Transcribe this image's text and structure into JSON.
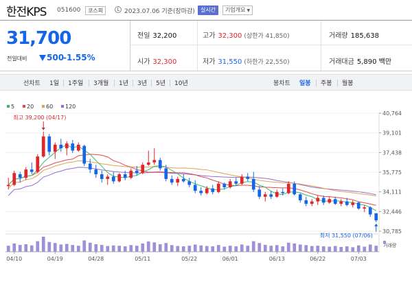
{
  "header": {
    "name": "한전KPS",
    "code": "051600",
    "market": "코스피",
    "date": "2023.07.06 기준(장마감)",
    "realtime_label": "실시간",
    "corp_label": "기업개요"
  },
  "price": {
    "current": "31,700",
    "change_label": "전일대비",
    "change": "500",
    "change_pct": "-1.55%",
    "direction": "down"
  },
  "stats": {
    "prev_close": {
      "label": "전일",
      "value": "32,200"
    },
    "high": {
      "label": "고가",
      "value": "32,300",
      "sub": "(상한가 41,850)"
    },
    "volume": {
      "label": "거래량",
      "value": "185,638"
    },
    "open": {
      "label": "시가",
      "value": "32,300"
    },
    "low": {
      "label": "저가",
      "value": "31,550",
      "sub": "(하한가 22,550)"
    },
    "amount": {
      "label": "거래대금",
      "value": "5,890 백만"
    }
  },
  "toolbar": {
    "line_chart_label": "선차트",
    "periods": [
      "1일",
      "1주일",
      "3개월",
      "1년",
      "3년",
      "5년",
      "10년"
    ],
    "candle_label": "봉차트",
    "candle_types": [
      "일봉",
      "주봉",
      "월봉"
    ],
    "candle_selected": "일봉"
  },
  "colors": {
    "up": "#e0252c",
    "down": "#1565e8",
    "ma5": "#3dbb6b",
    "ma20": "#e04a4a",
    "ma60": "#e0a050",
    "ma120": "#9a6ad0",
    "volume": "#9e8fd8",
    "accent": "#5b6fcf"
  },
  "icons": {
    "clock": "clock-icon",
    "caret": "chevron-down-icon"
  },
  "chart_data": {
    "type": "candlestick",
    "legend": [
      {
        "name": "5",
        "color": "#3dbb6b"
      },
      {
        "name": "20",
        "color": "#e04a4a"
      },
      {
        "name": "60",
        "color": "#e0a050"
      },
      {
        "name": "120",
        "color": "#9a6ad0"
      }
    ],
    "y_ticks": [
      30785,
      32446,
      34111,
      35775,
      37438,
      39101,
      40764
    ],
    "ylim": [
      30785,
      40764
    ],
    "x_ticks": [
      "04/10",
      "04/19",
      "04/28",
      "05/11",
      "05/22",
      "06/01",
      "06/13",
      "06/22",
      "07/03"
    ],
    "x_tick_index": [
      1,
      8,
      15,
      23,
      31,
      38,
      46,
      53,
      60
    ],
    "high_annotation": "최고 39,200 (04/17)",
    "high_annotation_index": 6,
    "low_annotation": "최저 31,550 (07/06)",
    "low_annotation_index": 63,
    "volume_label": "거래량",
    "candles": [
      {
        "o": 34600,
        "h": 35300,
        "l": 34300,
        "c": 34700,
        "v": 40
      },
      {
        "o": 34700,
        "h": 35900,
        "l": 34600,
        "c": 35700,
        "v": 55
      },
      {
        "o": 35600,
        "h": 35800,
        "l": 34900,
        "c": 35300,
        "v": 45
      },
      {
        "o": 35300,
        "h": 36200,
        "l": 35100,
        "c": 36000,
        "v": 50
      },
      {
        "o": 36000,
        "h": 36600,
        "l": 35600,
        "c": 35800,
        "v": 42
      },
      {
        "o": 35800,
        "h": 37300,
        "l": 35700,
        "c": 37100,
        "v": 70
      },
      {
        "o": 37100,
        "h": 39200,
        "l": 37000,
        "c": 38800,
        "v": 100
      },
      {
        "o": 38800,
        "h": 39000,
        "l": 37200,
        "c": 37500,
        "v": 65
      },
      {
        "o": 37500,
        "h": 38300,
        "l": 36900,
        "c": 38100,
        "v": 58
      },
      {
        "o": 38100,
        "h": 38600,
        "l": 37500,
        "c": 37800,
        "v": 48
      },
      {
        "o": 37800,
        "h": 38400,
        "l": 37200,
        "c": 38200,
        "v": 52
      },
      {
        "o": 38200,
        "h": 38500,
        "l": 37400,
        "c": 37600,
        "v": 45
      },
      {
        "o": 37600,
        "h": 38300,
        "l": 37500,
        "c": 38100,
        "v": 40
      },
      {
        "o": 38000,
        "h": 38100,
        "l": 36300,
        "c": 36500,
        "v": 75
      },
      {
        "o": 36500,
        "h": 36900,
        "l": 35700,
        "c": 36000,
        "v": 60
      },
      {
        "o": 36000,
        "h": 36400,
        "l": 35300,
        "c": 35600,
        "v": 50
      },
      {
        "o": 35600,
        "h": 35900,
        "l": 34900,
        "c": 35200,
        "v": 45
      },
      {
        "o": 35200,
        "h": 35600,
        "l": 34700,
        "c": 35400,
        "v": 38
      },
      {
        "o": 35400,
        "h": 35800,
        "l": 34800,
        "c": 35000,
        "v": 42
      },
      {
        "o": 35000,
        "h": 35700,
        "l": 34900,
        "c": 35600,
        "v": 40
      },
      {
        "o": 35600,
        "h": 35900,
        "l": 35100,
        "c": 35300,
        "v": 36
      },
      {
        "o": 35300,
        "h": 36100,
        "l": 35200,
        "c": 35900,
        "v": 44
      },
      {
        "o": 35900,
        "h": 36300,
        "l": 35500,
        "c": 35700,
        "v": 40
      },
      {
        "o": 35700,
        "h": 36600,
        "l": 35600,
        "c": 36400,
        "v": 55
      },
      {
        "o": 36400,
        "h": 37600,
        "l": 36300,
        "c": 36600,
        "v": 68
      },
      {
        "o": 36600,
        "h": 37800,
        "l": 36400,
        "c": 36800,
        "v": 62
      },
      {
        "o": 36800,
        "h": 37000,
        "l": 35900,
        "c": 36100,
        "v": 50
      },
      {
        "o": 36100,
        "h": 36400,
        "l": 35000,
        "c": 35200,
        "v": 58
      },
      {
        "o": 35200,
        "h": 35500,
        "l": 34700,
        "c": 34900,
        "v": 44
      },
      {
        "o": 34900,
        "h": 35400,
        "l": 34600,
        "c": 35200,
        "v": 38
      },
      {
        "o": 35200,
        "h": 35600,
        "l": 34900,
        "c": 35000,
        "v": 36
      },
      {
        "o": 35000,
        "h": 35300,
        "l": 34500,
        "c": 34700,
        "v": 40
      },
      {
        "o": 34700,
        "h": 35100,
        "l": 34000,
        "c": 34200,
        "v": 48
      },
      {
        "o": 34200,
        "h": 34500,
        "l": 33800,
        "c": 34000,
        "v": 42
      },
      {
        "o": 34000,
        "h": 34600,
        "l": 33900,
        "c": 34400,
        "v": 38
      },
      {
        "o": 34400,
        "h": 34700,
        "l": 33900,
        "c": 34100,
        "v": 36
      },
      {
        "o": 34100,
        "h": 35000,
        "l": 34000,
        "c": 34800,
        "v": 45
      },
      {
        "o": 34800,
        "h": 34900,
        "l": 34300,
        "c": 34500,
        "v": 34
      },
      {
        "o": 34500,
        "h": 35200,
        "l": 34400,
        "c": 35000,
        "v": 40
      },
      {
        "o": 35000,
        "h": 35300,
        "l": 34600,
        "c": 34800,
        "v": 36
      },
      {
        "o": 34800,
        "h": 35600,
        "l": 34700,
        "c": 35400,
        "v": 48
      },
      {
        "o": 35400,
        "h": 35700,
        "l": 35000,
        "c": 35200,
        "v": 40
      },
      {
        "o": 35200,
        "h": 35800,
        "l": 34100,
        "c": 34300,
        "v": 70
      },
      {
        "o": 34300,
        "h": 34600,
        "l": 33500,
        "c": 33700,
        "v": 58
      },
      {
        "o": 33700,
        "h": 34100,
        "l": 33300,
        "c": 33900,
        "v": 46
      },
      {
        "o": 33900,
        "h": 34200,
        "l": 33500,
        "c": 33700,
        "v": 40
      },
      {
        "o": 33700,
        "h": 34300,
        "l": 33600,
        "c": 34100,
        "v": 44
      },
      {
        "o": 34100,
        "h": 34400,
        "l": 33800,
        "c": 34000,
        "v": 36
      },
      {
        "o": 34000,
        "h": 35000,
        "l": 33900,
        "c": 34800,
        "v": 60
      },
      {
        "o": 34800,
        "h": 35000,
        "l": 33800,
        "c": 33900,
        "v": 55
      },
      {
        "o": 33900,
        "h": 34000,
        "l": 33200,
        "c": 33400,
        "v": 48
      },
      {
        "o": 33400,
        "h": 33700,
        "l": 32900,
        "c": 33100,
        "v": 44
      },
      {
        "o": 33100,
        "h": 33500,
        "l": 32900,
        "c": 33300,
        "v": 38
      },
      {
        "o": 33300,
        "h": 33800,
        "l": 33000,
        "c": 33600,
        "v": 40
      },
      {
        "o": 33600,
        "h": 33800,
        "l": 33000,
        "c": 33200,
        "v": 36
      },
      {
        "o": 33200,
        "h": 33700,
        "l": 33100,
        "c": 33500,
        "v": 34
      },
      {
        "o": 33500,
        "h": 33700,
        "l": 33000,
        "c": 33100,
        "v": 38
      },
      {
        "o": 33100,
        "h": 33500,
        "l": 32900,
        "c": 33300,
        "v": 32
      },
      {
        "o": 33300,
        "h": 33600,
        "l": 32900,
        "c": 33000,
        "v": 36
      },
      {
        "o": 33000,
        "h": 33400,
        "l": 32800,
        "c": 33200,
        "v": 30
      },
      {
        "o": 33200,
        "h": 33300,
        "l": 32600,
        "c": 32700,
        "v": 42
      },
      {
        "o": 32700,
        "h": 33000,
        "l": 32400,
        "c": 32800,
        "v": 34
      },
      {
        "o": 32800,
        "h": 32900,
        "l": 32000,
        "c": 32200,
        "v": 48
      },
      {
        "o": 32300,
        "h": 32300,
        "l": 31550,
        "c": 31700,
        "v": 40
      }
    ]
  }
}
